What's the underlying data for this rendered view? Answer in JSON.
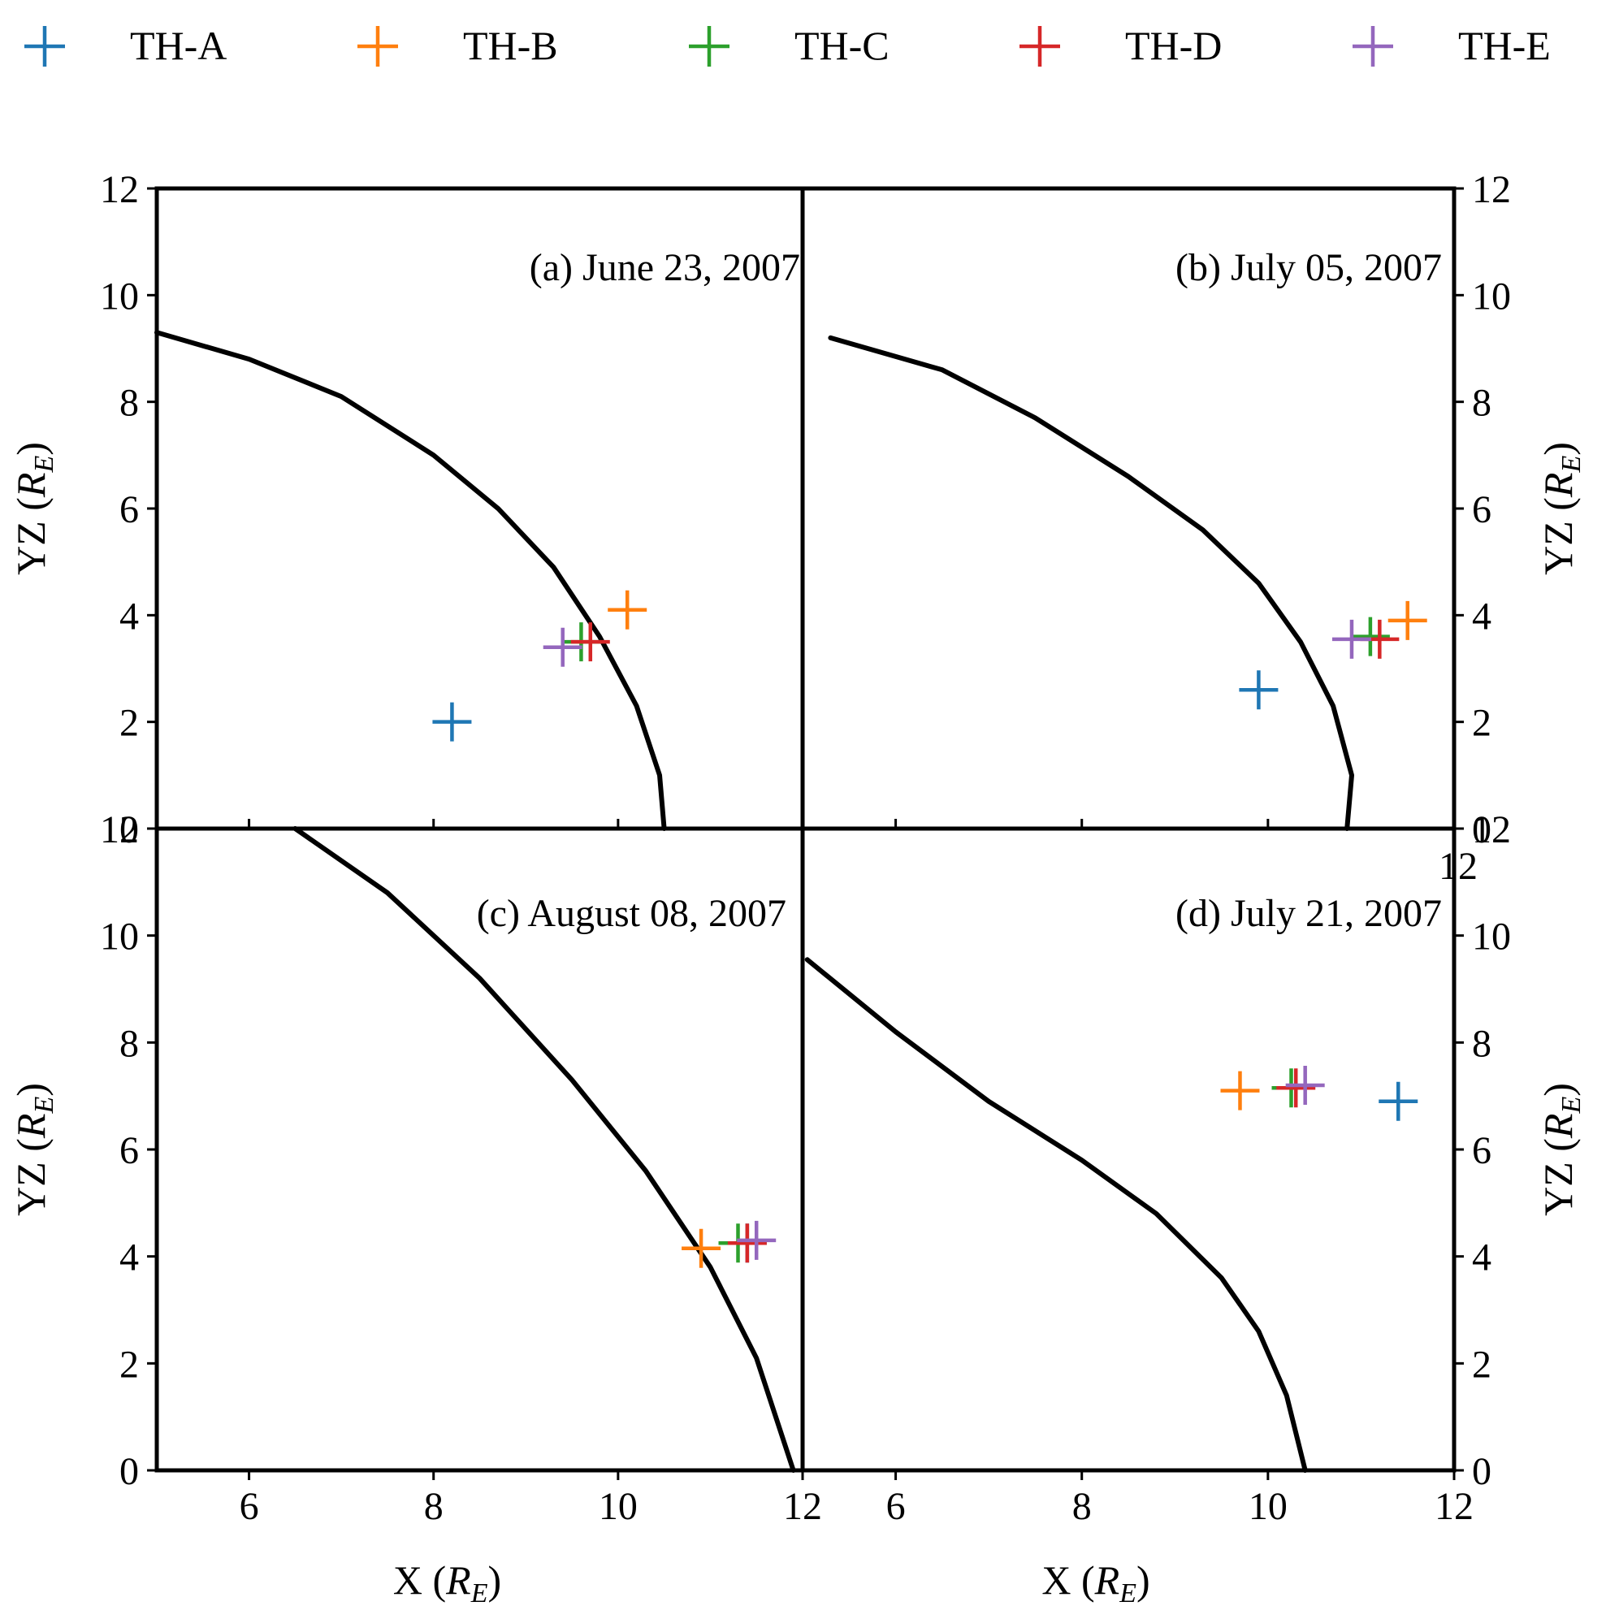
{
  "legend": {
    "entries": [
      {
        "label": "TH-A",
        "color": "#1f77b4"
      },
      {
        "label": "TH-B",
        "color": "#ff7f0e"
      },
      {
        "label": "TH-C",
        "color": "#2ca02c"
      },
      {
        "label": "TH-D",
        "color": "#d62728"
      },
      {
        "label": "TH-E",
        "color": "#9467bd"
      }
    ]
  },
  "chart_data": [
    {
      "type": "scatter",
      "title": "(a) June 23, 2007",
      "xlabel": "X (R_E)",
      "ylabel": "YZ (R_E)",
      "xlim": [
        5,
        12
      ],
      "ylim": [
        0,
        12
      ],
      "xticks": [
        6,
        8,
        10
      ],
      "yticks": [
        0,
        2,
        4,
        6,
        8,
        10,
        12
      ],
      "magnetopause": {
        "x": [
          5,
          6,
          7,
          8,
          8.7,
          9.3,
          9.8,
          10.2,
          10.45,
          10.5
        ],
        "y": [
          9.3,
          8.8,
          8.1,
          7.0,
          6.0,
          4.9,
          3.6,
          2.3,
          1.0,
          0
        ]
      },
      "series": [
        {
          "name": "TH-A",
          "x": [
            8.2
          ],
          "y": [
            2.0
          ]
        },
        {
          "name": "TH-B",
          "x": [
            10.1
          ],
          "y": [
            4.1
          ]
        },
        {
          "name": "TH-C",
          "x": [
            9.6
          ],
          "y": [
            3.5
          ]
        },
        {
          "name": "TH-D",
          "x": [
            9.7
          ],
          "y": [
            3.5
          ]
        },
        {
          "name": "TH-E",
          "x": [
            9.4
          ],
          "y": [
            3.4
          ]
        }
      ]
    },
    {
      "type": "scatter",
      "title": "(b) July 05, 2007",
      "xlabel": "X (R_E)",
      "ylabel": "YZ (R_E)",
      "xlim": [
        5,
        12
      ],
      "ylim": [
        0,
        12
      ],
      "xticks": [
        6,
        8,
        10,
        12
      ],
      "yticks": [
        0,
        2,
        4,
        6,
        8,
        10,
        12
      ],
      "magnetopause": {
        "x": [
          5.3,
          6.5,
          7.5,
          8.5,
          9.3,
          9.9,
          10.35,
          10.7,
          10.9,
          10.85
        ],
        "y": [
          9.2,
          8.6,
          7.7,
          6.6,
          5.6,
          4.6,
          3.5,
          2.3,
          1.0,
          0
        ]
      },
      "series": [
        {
          "name": "TH-A",
          "x": [
            9.9
          ],
          "y": [
            2.6
          ]
        },
        {
          "name": "TH-B",
          "x": [
            11.5
          ],
          "y": [
            3.9
          ]
        },
        {
          "name": "TH-C",
          "x": [
            11.1
          ],
          "y": [
            3.6
          ]
        },
        {
          "name": "TH-D",
          "x": [
            11.2
          ],
          "y": [
            3.55
          ]
        },
        {
          "name": "TH-E",
          "x": [
            10.9
          ],
          "y": [
            3.55
          ]
        }
      ]
    },
    {
      "type": "scatter",
      "title": "(c) August 08, 2007",
      "xlabel": "X (R_E)",
      "ylabel": "YZ (R_E)",
      "xlim": [
        5,
        12
      ],
      "ylim": [
        0,
        12
      ],
      "xticks": [
        6,
        8,
        10,
        12
      ],
      "yticks": [
        0,
        2,
        4,
        6,
        8,
        10,
        12
      ],
      "magnetopause": {
        "x": [
          6.5,
          7.5,
          8.5,
          9.5,
          10.3,
          11.0,
          11.5,
          11.9
        ],
        "y": [
          12,
          10.8,
          9.2,
          7.3,
          5.6,
          3.8,
          2.1,
          0
        ]
      },
      "series": [
        {
          "name": "TH-A",
          "x": [
            11.4
          ],
          "y": [
            4.25
          ]
        },
        {
          "name": "TH-B",
          "x": [
            10.9
          ],
          "y": [
            4.15
          ]
        },
        {
          "name": "TH-C",
          "x": [
            11.3
          ],
          "y": [
            4.25
          ]
        },
        {
          "name": "TH-D",
          "x": [
            11.4
          ],
          "y": [
            4.25
          ]
        },
        {
          "name": "TH-E",
          "x": [
            11.5
          ],
          "y": [
            4.3
          ]
        }
      ]
    },
    {
      "type": "scatter",
      "title": "(d) July 21, 2007",
      "xlabel": "X (R_E)",
      "ylabel": "YZ (R_E)",
      "xlim": [
        5,
        12
      ],
      "ylim": [
        0,
        12
      ],
      "xticks": [
        6,
        8,
        10,
        12
      ],
      "yticks": [
        0,
        2,
        4,
        6,
        8,
        10,
        12
      ],
      "magnetopause": {
        "x": [
          5.05,
          6.0,
          7.0,
          8.0,
          8.8,
          9.5,
          9.9,
          10.2,
          10.4
        ],
        "y": [
          9.55,
          8.2,
          6.9,
          5.8,
          4.8,
          3.6,
          2.6,
          1.4,
          0
        ]
      },
      "series": [
        {
          "name": "TH-A",
          "x": [
            11.4
          ],
          "y": [
            6.9
          ]
        },
        {
          "name": "TH-B",
          "x": [
            9.7
          ],
          "y": [
            7.1
          ]
        },
        {
          "name": "TH-C",
          "x": [
            10.25
          ],
          "y": [
            7.15
          ]
        },
        {
          "name": "TH-D",
          "x": [
            10.3
          ],
          "y": [
            7.15
          ]
        },
        {
          "name": "TH-E",
          "x": [
            10.4
          ],
          "y": [
            7.2
          ]
        }
      ]
    }
  ]
}
